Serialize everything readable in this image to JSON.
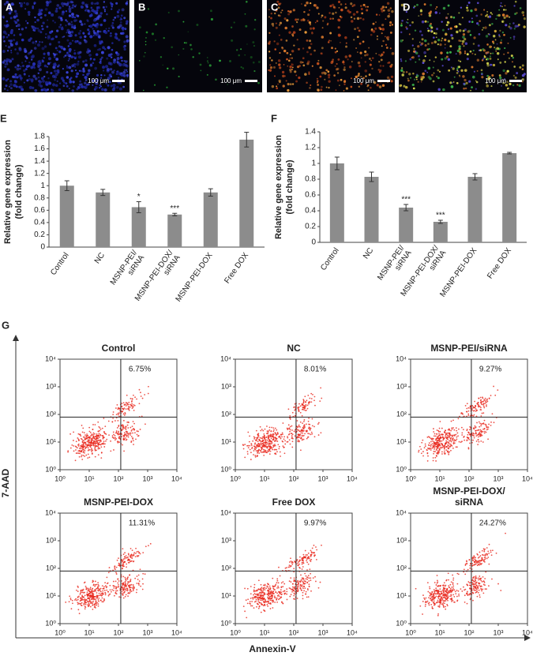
{
  "images": [
    {
      "label": "A",
      "scale": "100 μm"
    },
    {
      "label": "B",
      "scale": "100 μm"
    },
    {
      "label": "C",
      "scale": "100 μm"
    },
    {
      "label": "D",
      "scale": "100 μm"
    }
  ],
  "flow": {
    "panel": "G",
    "xlabel": "Annexin-V",
    "ylabel": "7-AAD"
  },
  "chart_data": [
    {
      "type": "bar",
      "panel": "E",
      "ylabel": [
        "Relative gene expression",
        "(fold change)"
      ],
      "categories": [
        [
          "Control"
        ],
        [
          "NC"
        ],
        [
          "MSNP-PEI/",
          "siRNA"
        ],
        [
          "MSNP-PEI-DOX/",
          "siRNA"
        ],
        [
          "MSNP-PEI-DOX"
        ],
        [
          "Free DOX"
        ]
      ],
      "values": [
        1.0,
        0.89,
        0.65,
        0.53,
        0.89,
        1.75
      ],
      "errors": [
        0.08,
        0.05,
        0.09,
        0.02,
        0.06,
        0.12
      ],
      "annotations": [
        null,
        null,
        "*",
        "***",
        null,
        null
      ],
      "color": "#8c8c8c",
      "ylim": [
        0,
        1.8
      ],
      "yticks": [
        0,
        0.2,
        0.4,
        0.6,
        0.8,
        1,
        1.2,
        1.4,
        1.6,
        1.8
      ]
    },
    {
      "type": "bar",
      "panel": "F",
      "ylabel": [
        "Relative gene expression",
        "(fold change)"
      ],
      "categories": [
        [
          "Control"
        ],
        [
          "NC"
        ],
        [
          "MSNP-PEI/",
          "siRNA"
        ],
        [
          "MSNP-PEI-DOX/",
          "siRNA"
        ],
        [
          "MSNP-PEI-DOX"
        ],
        [
          "Free DOX"
        ]
      ],
      "values": [
        1.0,
        0.83,
        0.44,
        0.26,
        0.83,
        1.13
      ],
      "errors": [
        0.08,
        0.06,
        0.04,
        0.02,
        0.04,
        0.01
      ],
      "annotations": [
        null,
        null,
        "***",
        "***",
        null,
        null
      ],
      "color": "#8c8c8c",
      "ylim": [
        0,
        1.4
      ],
      "yticks": [
        0,
        0.2,
        0.4,
        0.6,
        0.8,
        1,
        1.2,
        1.4
      ]
    },
    {
      "type": "flow",
      "title": [
        "Control"
      ],
      "values": [
        6.75
      ],
      "value_labels": [
        "6.75%"
      ],
      "gate": [
        120,
        80
      ],
      "color": "#e8261a",
      "log": true,
      "xlim": [
        1,
        10000
      ],
      "ylim": [
        1,
        10000
      ],
      "xticks": [
        {
          "value": 1,
          "label": "10⁰"
        },
        {
          "value": 10,
          "label": "10¹"
        },
        {
          "value": 100,
          "label": "10²"
        },
        {
          "value": 1000,
          "label": "10³"
        },
        {
          "value": 10000,
          "label": "10⁴"
        }
      ],
      "yticks": [
        {
          "value": 1,
          "label": "10⁰"
        },
        {
          "value": 10,
          "label": "10¹"
        },
        {
          "value": 100,
          "label": "10²"
        },
        {
          "value": 1000,
          "label": "10³"
        },
        {
          "value": 10000,
          "label": "10⁴"
        }
      ]
    },
    {
      "type": "flow",
      "title": [
        "NC"
      ],
      "values": [
        8.01
      ],
      "value_labels": [
        "8.01%"
      ],
      "gate": [
        120,
        80
      ],
      "color": "#e8261a",
      "log": true,
      "xlim": [
        1,
        10000
      ],
      "ylim": [
        1,
        10000
      ],
      "xticks": [
        {
          "value": 1,
          "label": "10⁰"
        },
        {
          "value": 10,
          "label": "10¹"
        },
        {
          "value": 100,
          "label": "10²"
        },
        {
          "value": 1000,
          "label": "10³"
        },
        {
          "value": 10000,
          "label": "10⁴"
        }
      ],
      "yticks": [
        {
          "value": 1,
          "label": "10⁰"
        },
        {
          "value": 10,
          "label": "10¹"
        },
        {
          "value": 100,
          "label": "10²"
        },
        {
          "value": 1000,
          "label": "10³"
        },
        {
          "value": 10000,
          "label": "10⁴"
        }
      ]
    },
    {
      "type": "flow",
      "title": [
        "MSNP-PEI/siRNA"
      ],
      "values": [
        9.27
      ],
      "value_labels": [
        "9.27%"
      ],
      "gate": [
        120,
        80
      ],
      "color": "#e8261a",
      "log": true,
      "xlim": [
        1,
        10000
      ],
      "ylim": [
        1,
        10000
      ],
      "xticks": [
        {
          "value": 1,
          "label": "10⁰"
        },
        {
          "value": 10,
          "label": "10¹"
        },
        {
          "value": 100,
          "label": "10²"
        },
        {
          "value": 1000,
          "label": "10³"
        },
        {
          "value": 10000,
          "label": "10⁴"
        }
      ],
      "yticks": [
        {
          "value": 1,
          "label": "10⁰"
        },
        {
          "value": 10,
          "label": "10¹"
        },
        {
          "value": 100,
          "label": "10²"
        },
        {
          "value": 1000,
          "label": "10³"
        },
        {
          "value": 10000,
          "label": "10⁴"
        }
      ]
    },
    {
      "type": "flow",
      "title": [
        "MSNP-PEI-DOX"
      ],
      "values": [
        11.31
      ],
      "value_labels": [
        "11.31%"
      ],
      "gate": [
        120,
        80
      ],
      "color": "#e8261a",
      "log": true,
      "xlim": [
        1,
        10000
      ],
      "ylim": [
        1,
        10000
      ],
      "xticks": [
        {
          "value": 1,
          "label": "10⁰"
        },
        {
          "value": 10,
          "label": "10¹"
        },
        {
          "value": 100,
          "label": "10²"
        },
        {
          "value": 1000,
          "label": "10³"
        },
        {
          "value": 10000,
          "label": "10⁴"
        }
      ],
      "yticks": [
        {
          "value": 1,
          "label": "10⁰"
        },
        {
          "value": 10,
          "label": "10¹"
        },
        {
          "value": 100,
          "label": "10²"
        },
        {
          "value": 1000,
          "label": "10³"
        },
        {
          "value": 10000,
          "label": "10⁴"
        }
      ]
    },
    {
      "type": "flow",
      "title": [
        "Free DOX"
      ],
      "values": [
        9.97
      ],
      "value_labels": [
        "9.97%"
      ],
      "gate": [
        120,
        80
      ],
      "color": "#e8261a",
      "log": true,
      "xlim": [
        1,
        10000
      ],
      "ylim": [
        1,
        10000
      ],
      "xticks": [
        {
          "value": 1,
          "label": "10⁰"
        },
        {
          "value": 10,
          "label": "10¹"
        },
        {
          "value": 100,
          "label": "10²"
        },
        {
          "value": 1000,
          "label": "10³"
        },
        {
          "value": 10000,
          "label": "10⁴"
        }
      ],
      "yticks": [
        {
          "value": 1,
          "label": "10⁰"
        },
        {
          "value": 10,
          "label": "10¹"
        },
        {
          "value": 100,
          "label": "10²"
        },
        {
          "value": 1000,
          "label": "10³"
        },
        {
          "value": 10000,
          "label": "10⁴"
        }
      ]
    },
    {
      "type": "flow",
      "title": [
        "MSNP-PEI-DOX/",
        "siRNA"
      ],
      "values": [
        24.27
      ],
      "value_labels": [
        "24.27%"
      ],
      "gate": [
        120,
        80
      ],
      "color": "#e8261a",
      "log": true,
      "xlim": [
        1,
        10000
      ],
      "ylim": [
        1,
        10000
      ],
      "xticks": [
        {
          "value": 1,
          "label": "10⁰"
        },
        {
          "value": 10,
          "label": "10¹"
        },
        {
          "value": 100,
          "label": "10²"
        },
        {
          "value": 1000,
          "label": "10³"
        },
        {
          "value": 10000,
          "label": "10⁴"
        }
      ],
      "yticks": [
        {
          "value": 1,
          "label": "10⁰"
        },
        {
          "value": 10,
          "label": "10¹"
        },
        {
          "value": 100,
          "label": "10²"
        },
        {
          "value": 1000,
          "label": "10³"
        },
        {
          "value": 10000,
          "label": "10⁴"
        }
      ]
    }
  ]
}
